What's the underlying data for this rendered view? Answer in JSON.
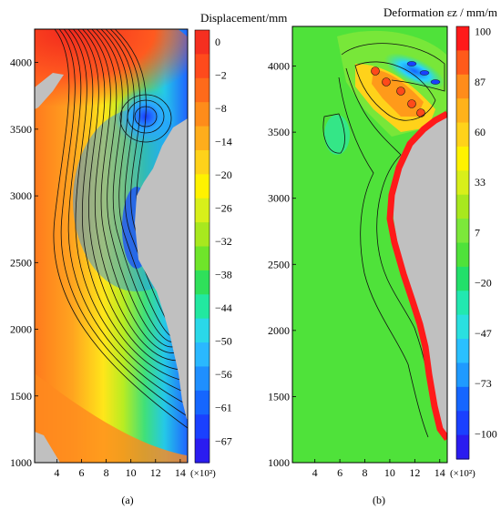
{
  "chart_data": [
    {
      "id": "a",
      "type": "heatmap",
      "panel_label": "(a)",
      "colorbar_title": "Displacement/mm",
      "x_ticks": [
        "4",
        "6",
        "8",
        "10",
        "12",
        "14"
      ],
      "x_multiplier": "(×10²)",
      "y_ticks": [
        "1000",
        "1500",
        "2000",
        "2500",
        "3000",
        "3500",
        "4000"
      ],
      "xlim": [
        2.2,
        14.6
      ],
      "ylim": [
        1000,
        4250
      ],
      "colorbar_ticks": [
        "0",
        "−2",
        "−8",
        "−14",
        "−20",
        "−26",
        "−32",
        "−38",
        "−44",
        "−50",
        "−56",
        "−61",
        "−67"
      ],
      "colorbar_range": [
        -67,
        3
      ],
      "contour_interval": 3,
      "excluded_region_color": "#c0c0c0",
      "min_location": {
        "x": 11.5,
        "y": 3620,
        "value": -67
      }
    },
    {
      "id": "b",
      "type": "heatmap",
      "panel_label": "(b)",
      "colorbar_title": "Deformation εz / mm/m",
      "x_ticks": [
        "4",
        "6",
        "8",
        "10",
        "12",
        "14"
      ],
      "x_multiplier": "(×10²)",
      "y_ticks": [
        "1000",
        "1500",
        "2000",
        "2500",
        "3000",
        "3500",
        "4000"
      ],
      "xlim": [
        2.2,
        14.6
      ],
      "ylim": [
        1000,
        4300
      ],
      "colorbar_ticks": [
        "100",
        "87",
        "60",
        "33",
        "7",
        "−20",
        "−47",
        "−73",
        "−100"
      ],
      "colorbar_range": [
        -100,
        100
      ],
      "excluded_region_color": "#c0c0c0",
      "edge_color": "#ff1a1a"
    }
  ],
  "colors": {
    "scale": [
      "#1a2bff",
      "#0a5cff",
      "#1f8fff",
      "#3fc6ff",
      "#22e8c8",
      "#20e060",
      "#6fe52a",
      "#c8ef1a",
      "#fff200",
      "#ffc000",
      "#ff8c1a",
      "#ff5a1a",
      "#f52f20"
    ]
  }
}
